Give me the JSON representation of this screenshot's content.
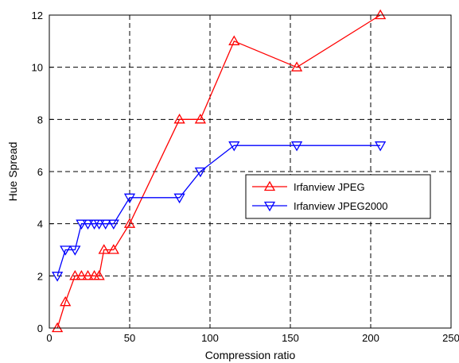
{
  "chart_data": {
    "type": "line",
    "title": "",
    "xlabel": "Compression ratio",
    "ylabel": "Hue Spread",
    "xlim": [
      0,
      250
    ],
    "ylim": [
      0,
      12
    ],
    "xticks": [
      0,
      50,
      100,
      150,
      200,
      250
    ],
    "yticks": [
      0,
      2,
      4,
      6,
      8,
      10,
      12
    ],
    "grid": true,
    "grid_style": "dashed",
    "legend_position": "right",
    "series": [
      {
        "name": "Irfanview JPEG",
        "color": "#ff0000",
        "marker": "triangle-up",
        "x": [
          5,
          10,
          16,
          20,
          24,
          28,
          31,
          34,
          40,
          50,
          81,
          94,
          115,
          154,
          206
        ],
        "y": [
          0,
          1,
          2,
          2,
          2,
          2,
          2,
          3,
          3,
          4,
          8,
          8,
          11,
          10,
          12
        ]
      },
      {
        "name": "Irfanview JPEG2000",
        "color": "#0000ff",
        "marker": "triangle-down",
        "x": [
          5,
          10,
          16,
          20,
          24,
          28,
          31,
          35,
          40,
          50,
          81,
          94,
          115,
          154,
          206
        ],
        "y": [
          2,
          3,
          3,
          4,
          4,
          4,
          4,
          4,
          4,
          5,
          5,
          6,
          7,
          7,
          7
        ]
      }
    ]
  }
}
